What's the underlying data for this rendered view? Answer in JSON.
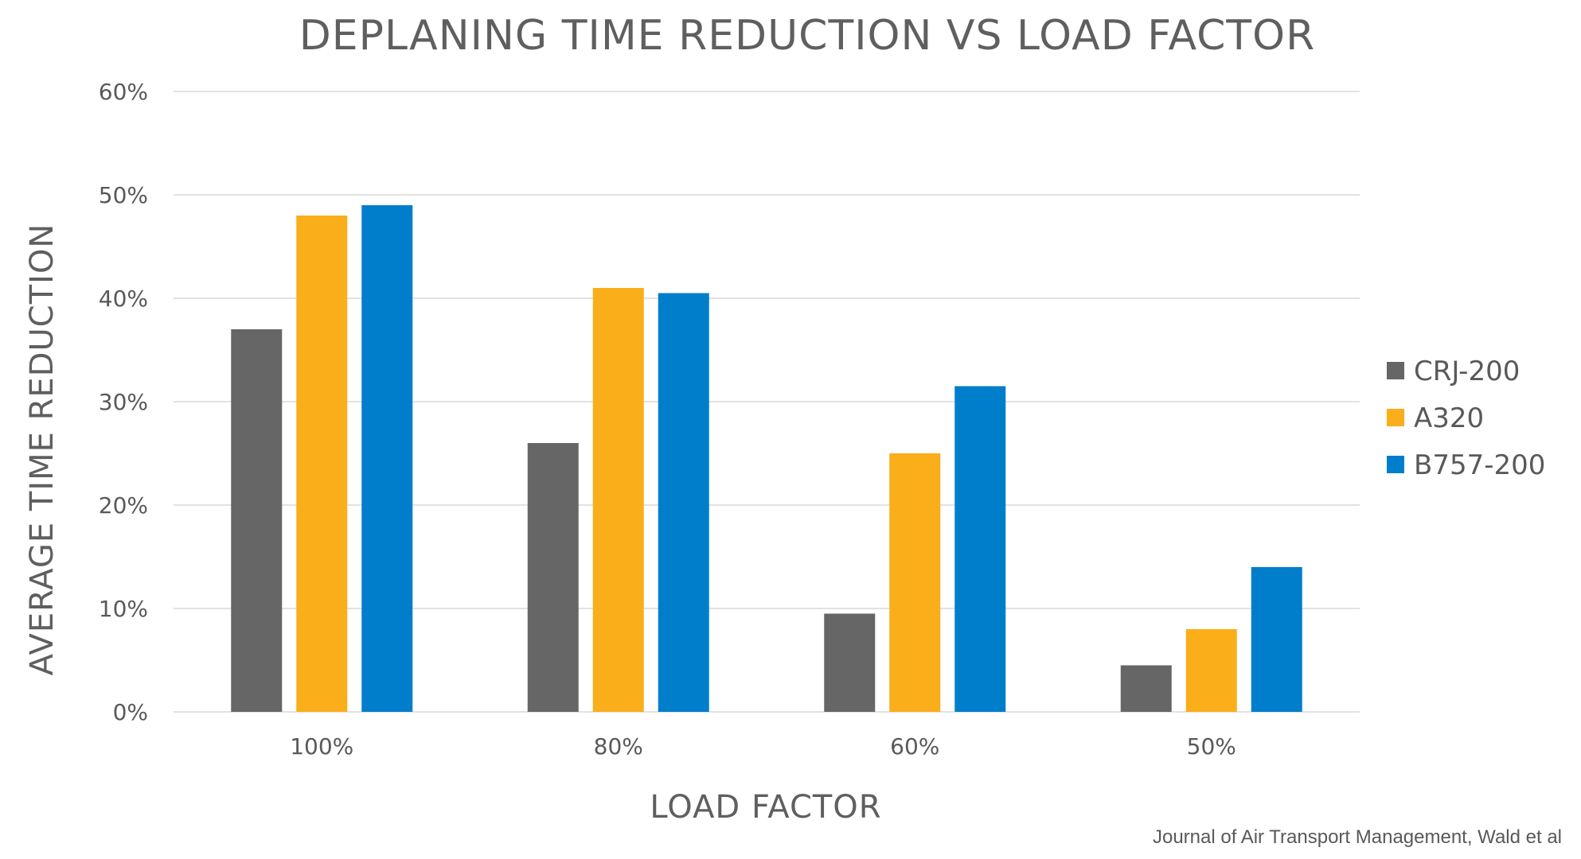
{
  "chart_data": {
    "type": "bar",
    "title": "DEPLANING TIME REDUCTION VS LOAD FACTOR",
    "xlabel": "LOAD FACTOR",
    "ylabel": "AVERAGE TIME REDUCTION",
    "categories": [
      "100%",
      "80%",
      "60%",
      "50%"
    ],
    "series": [
      {
        "name": "CRJ-200",
        "color": "#666666",
        "values": [
          37,
          26,
          9.5,
          4.5
        ]
      },
      {
        "name": "A320",
        "color": "#f9ae1a",
        "values": [
          48,
          41,
          25,
          8
        ]
      },
      {
        "name": "B757-200",
        "color": "#007ecb",
        "values": [
          49,
          40.5,
          31.5,
          14
        ]
      }
    ],
    "ylim": [
      0,
      60
    ],
    "yticks": [
      0,
      10,
      20,
      30,
      40,
      50,
      60
    ],
    "ytick_labels": [
      "0%",
      "10%",
      "20%",
      "30%",
      "40%",
      "50%",
      "60%"
    ],
    "grid": true,
    "legend_position": "right",
    "source": "Journal of Air Transport Management, Wald et al"
  }
}
